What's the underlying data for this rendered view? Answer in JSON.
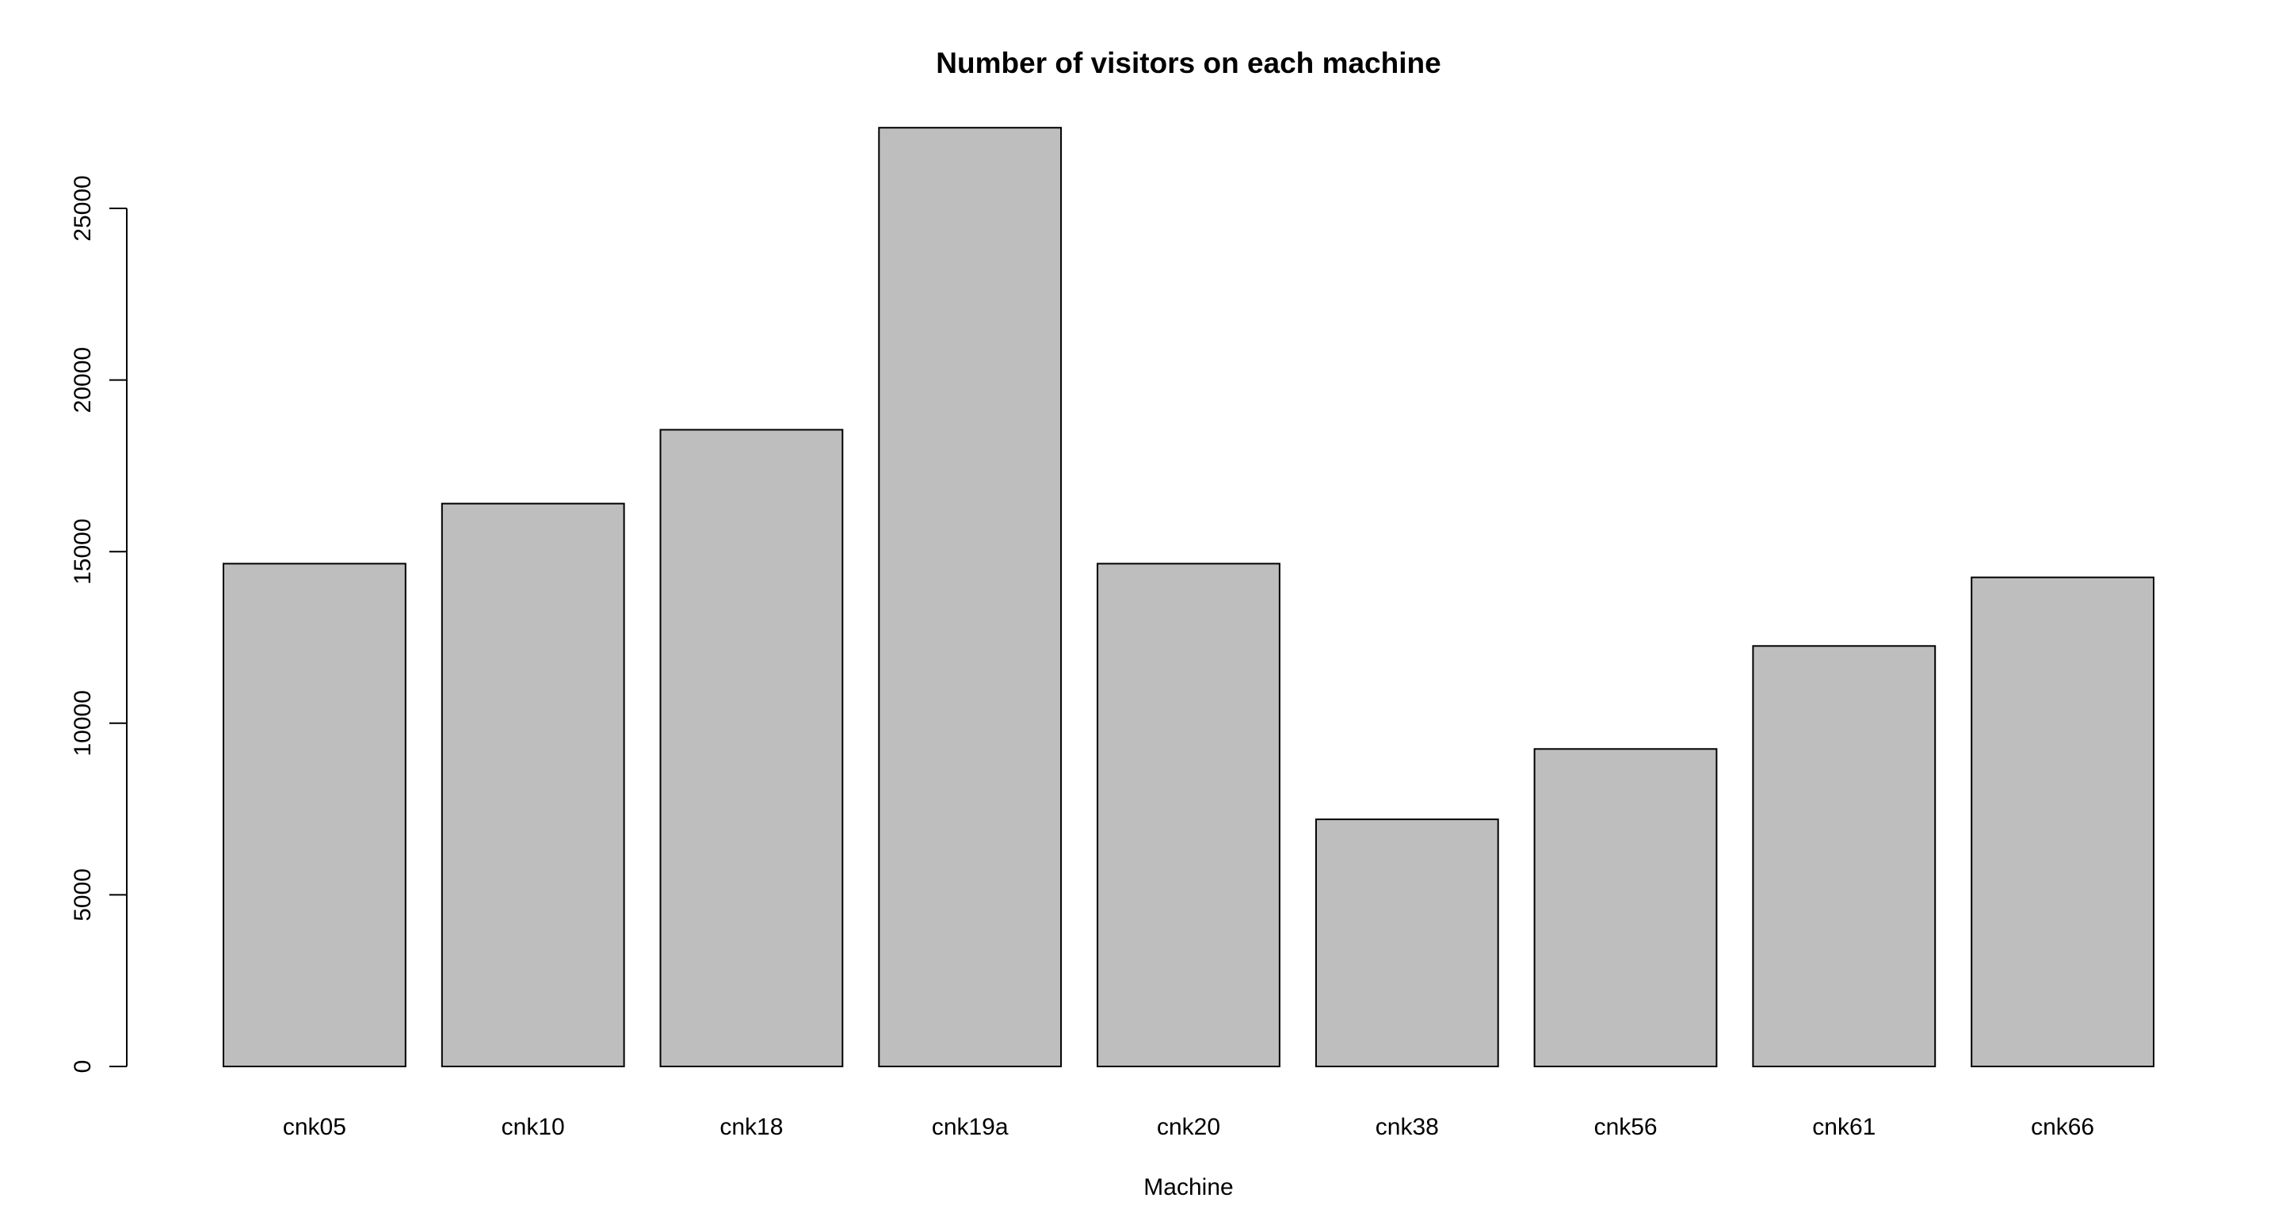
{
  "chart_data": {
    "type": "bar",
    "title": "Number of visitors on each machine",
    "xlabel": "Machine",
    "ylabel": "",
    "categories": [
      "cnk05",
      "cnk10",
      "cnk18",
      "cnk19a",
      "cnk20",
      "cnk38",
      "cnk56",
      "cnk61",
      "cnk66"
    ],
    "values": [
      14650,
      16400,
      18550,
      27350,
      14650,
      7200,
      9250,
      12250,
      14250
    ],
    "ylim": [
      0,
      27350
    ],
    "yticks": [
      0,
      5000,
      10000,
      15000,
      20000,
      25000
    ],
    "ytick_labels": [
      "0",
      "5000",
      "10000",
      "15000",
      "20000",
      "25000"
    ],
    "grid": false,
    "legend": "none",
    "colors": {
      "bar_fill": "#bebebe",
      "bar_stroke": "#000000",
      "background": "#ffffff"
    }
  }
}
